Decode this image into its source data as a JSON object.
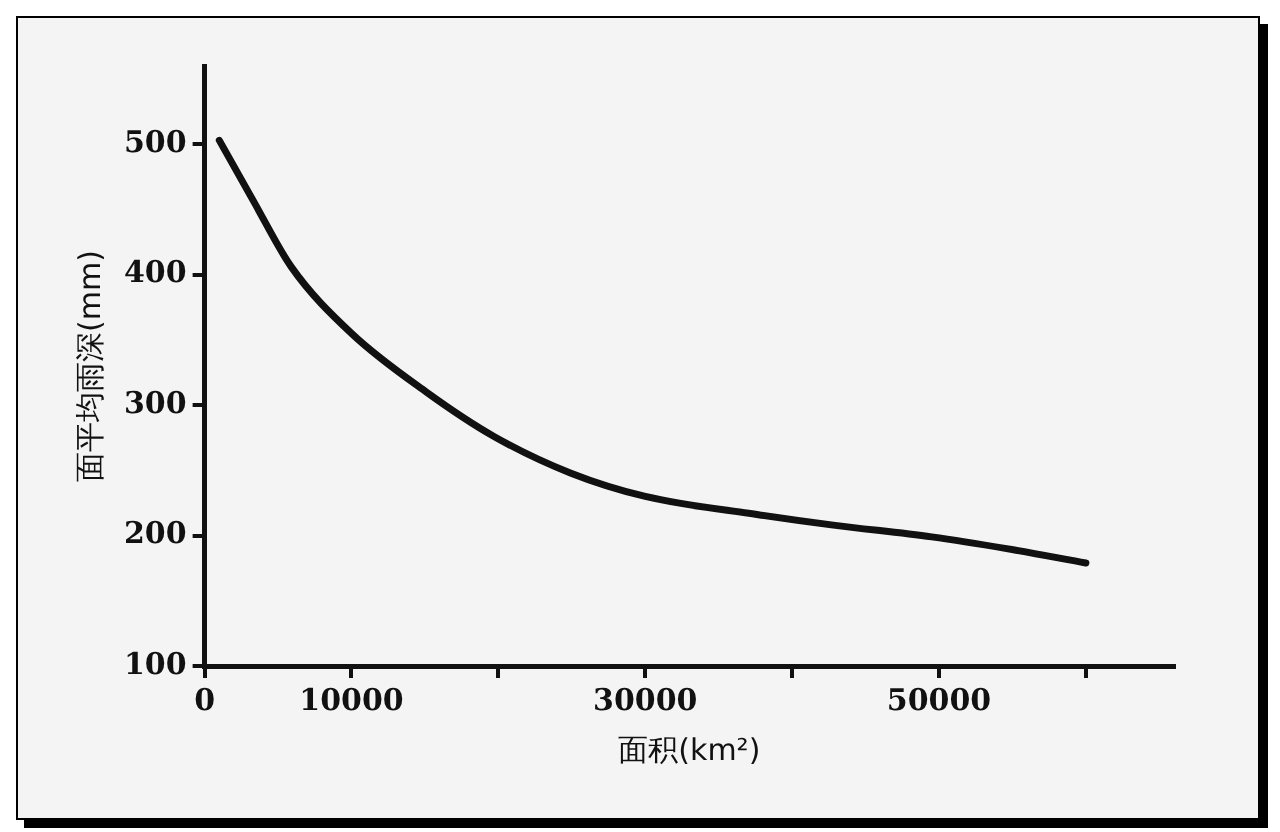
{
  "chart_data": {
    "type": "line",
    "xlabel": "面积(km²)",
    "ylabel": "面平均雨深(mm)",
    "xlim": [
      0,
      66000
    ],
    "ylim": [
      100,
      560
    ],
    "xticks": [
      0,
      10000,
      {
        "value": 20000,
        "label": null
      },
      30000,
      {
        "value": 40000,
        "label": null
      },
      50000,
      {
        "value": 60000,
        "label": null
      }
    ],
    "yticks": [
      100,
      200,
      300,
      400,
      500
    ],
    "grid": false,
    "legend": false,
    "marker": "none",
    "line_style": "solid",
    "series": [
      {
        "color": "#111111",
        "x": [
          1000,
          3300,
          5900,
          10000,
          15100,
          19700,
          24900,
          30000,
          37700,
          42800,
          49500,
          54600,
          60000
        ],
        "values": [
          503,
          457,
          406,
          355,
          310,
          276,
          248,
          230,
          216,
          208,
          199,
          190,
          179
        ]
      }
    ]
  }
}
